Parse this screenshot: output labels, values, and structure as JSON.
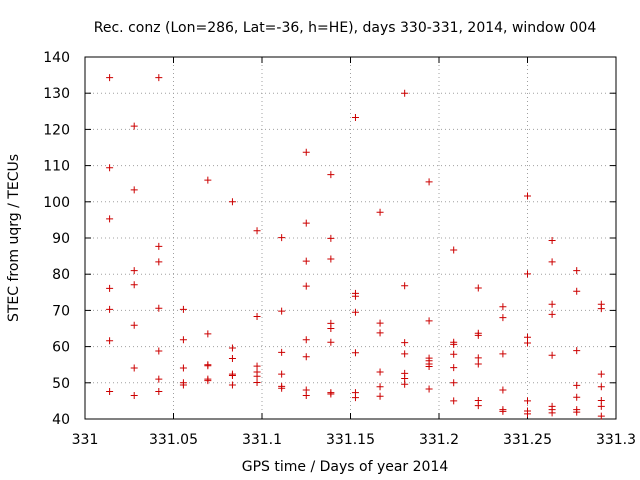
{
  "chart_data": {
    "type": "scatter",
    "title": "Rec. conz (Lon=286, Lat=-36, h=HE), days 330-331, 2014, window 004",
    "xlabel": "GPS time / Days of year 2014",
    "ylabel": "STEC from uqrg / TECUs",
    "xlim": [
      331,
      331.3
    ],
    "ylim": [
      40,
      140
    ],
    "xticks": [
      331,
      331.05,
      331.1,
      331.15,
      331.2,
      331.25,
      331.3
    ],
    "xtick_labels": [
      "331",
      "331.05",
      "331.1",
      "331.15",
      "331.2",
      "331.25",
      "331.3"
    ],
    "yticks": [
      40,
      50,
      60,
      70,
      80,
      90,
      100,
      110,
      120,
      130,
      140
    ],
    "ytick_labels": [
      "40",
      "50",
      "60",
      "70",
      "80",
      "90",
      "100",
      "110",
      "120",
      "130",
      "140"
    ],
    "grid": true,
    "marker": "+",
    "marker_color": "#cc0000",
    "points": [
      [
        331.0139,
        134.3
      ],
      [
        331.0139,
        109.4
      ],
      [
        331.0139,
        95.3
      ],
      [
        331.0139,
        76.1
      ],
      [
        331.0139,
        70.3
      ],
      [
        331.0139,
        61.6
      ],
      [
        331.0139,
        47.6
      ],
      [
        331.0278,
        120.9
      ],
      [
        331.0278,
        103.3
      ],
      [
        331.0278,
        81.0
      ],
      [
        331.0278,
        77.1
      ],
      [
        331.0278,
        65.9
      ],
      [
        331.0278,
        54.1
      ],
      [
        331.0278,
        46.5
      ],
      [
        331.0417,
        134.3
      ],
      [
        331.0417,
        87.7
      ],
      [
        331.0417,
        83.4
      ],
      [
        331.0417,
        70.6
      ],
      [
        331.0417,
        58.8
      ],
      [
        331.0417,
        51.0
      ],
      [
        331.0417,
        47.6
      ],
      [
        331.0556,
        70.3
      ],
      [
        331.0556,
        61.9
      ],
      [
        331.0556,
        54.1
      ],
      [
        331.0556,
        50.0
      ],
      [
        331.0556,
        49.4
      ],
      [
        331.0694,
        106.0
      ],
      [
        331.0694,
        63.5
      ],
      [
        331.0694,
        55.0
      ],
      [
        331.0694,
        54.7
      ],
      [
        331.0694,
        51.0
      ],
      [
        331.0694,
        50.6
      ],
      [
        331.0833,
        100.0
      ],
      [
        331.0833,
        59.6
      ],
      [
        331.0833,
        56.7
      ],
      [
        331.0833,
        52.4
      ],
      [
        331.0833,
        52.0
      ],
      [
        331.0833,
        49.4
      ],
      [
        331.0972,
        92.0
      ],
      [
        331.0972,
        68.3
      ],
      [
        331.0972,
        54.6
      ],
      [
        331.0972,
        53.0
      ],
      [
        331.0972,
        51.8
      ],
      [
        331.0972,
        50.1
      ],
      [
        331.1111,
        90.1
      ],
      [
        331.1111,
        69.8
      ],
      [
        331.1111,
        58.4
      ],
      [
        331.1111,
        52.4
      ],
      [
        331.1111,
        49.0
      ],
      [
        331.1111,
        48.5
      ],
      [
        331.125,
        113.7
      ],
      [
        331.125,
        94.1
      ],
      [
        331.125,
        83.6
      ],
      [
        331.125,
        76.7
      ],
      [
        331.125,
        61.9
      ],
      [
        331.125,
        57.2
      ],
      [
        331.125,
        48.0
      ],
      [
        331.125,
        46.5
      ],
      [
        331.1389,
        107.5
      ],
      [
        331.1389,
        89.9
      ],
      [
        331.1389,
        84.2
      ],
      [
        331.1389,
        66.4
      ],
      [
        331.1389,
        65.0
      ],
      [
        331.1389,
        61.2
      ],
      [
        331.1389,
        47.3
      ],
      [
        331.1389,
        46.9
      ],
      [
        331.1528,
        123.3
      ],
      [
        331.1528,
        74.7
      ],
      [
        331.1528,
        73.9
      ],
      [
        331.1528,
        69.5
      ],
      [
        331.1528,
        58.3
      ],
      [
        331.1528,
        47.3
      ],
      [
        331.1528,
        45.9
      ],
      [
        331.1667,
        97.1
      ],
      [
        331.1667,
        66.5
      ],
      [
        331.1667,
        63.8
      ],
      [
        331.1667,
        53.0
      ],
      [
        331.1667,
        48.9
      ],
      [
        331.1667,
        46.3
      ],
      [
        331.1806,
        130.0
      ],
      [
        331.1806,
        76.8
      ],
      [
        331.1806,
        61.1
      ],
      [
        331.1806,
        58.0
      ],
      [
        331.1806,
        52.6
      ],
      [
        331.1806,
        51.2
      ],
      [
        331.1806,
        49.6
      ],
      [
        331.1944,
        105.5
      ],
      [
        331.1944,
        67.1
      ],
      [
        331.1944,
        56.8
      ],
      [
        331.1944,
        56.1
      ],
      [
        331.1944,
        55.2
      ],
      [
        331.1944,
        54.5
      ],
      [
        331.1944,
        48.3
      ],
      [
        331.2083,
        86.7
      ],
      [
        331.2083,
        61.2
      ],
      [
        331.2083,
        60.6
      ],
      [
        331.2083,
        57.9
      ],
      [
        331.2083,
        54.2
      ],
      [
        331.2083,
        50.0
      ],
      [
        331.2083,
        45.0
      ],
      [
        331.2222,
        76.2
      ],
      [
        331.2222,
        63.7
      ],
      [
        331.2222,
        63.1
      ],
      [
        331.2222,
        56.9
      ],
      [
        331.2222,
        55.2
      ],
      [
        331.2222,
        45.1
      ],
      [
        331.2222,
        43.7
      ],
      [
        331.2361,
        71.0
      ],
      [
        331.2361,
        68.0
      ],
      [
        331.2361,
        58.0
      ],
      [
        331.2361,
        48.0
      ],
      [
        331.2361,
        42.6
      ],
      [
        331.2361,
        42.1
      ],
      [
        331.25,
        101.6
      ],
      [
        331.25,
        80.1
      ],
      [
        331.25,
        62.6
      ],
      [
        331.25,
        61.0
      ],
      [
        331.25,
        45.0
      ],
      [
        331.25,
        42.2
      ],
      [
        331.25,
        41.4
      ],
      [
        331.2639,
        89.3
      ],
      [
        331.2639,
        83.4
      ],
      [
        331.2639,
        71.7
      ],
      [
        331.2639,
        68.9
      ],
      [
        331.2639,
        57.6
      ],
      [
        331.2639,
        43.5
      ],
      [
        331.2639,
        42.6
      ],
      [
        331.2639,
        41.7
      ],
      [
        331.2778,
        81.0
      ],
      [
        331.2778,
        75.3
      ],
      [
        331.2778,
        58.9
      ],
      [
        331.2778,
        49.3
      ],
      [
        331.2778,
        46.0
      ],
      [
        331.2778,
        42.6
      ],
      [
        331.2778,
        41.9
      ],
      [
        331.2917,
        71.7
      ],
      [
        331.2917,
        70.5
      ],
      [
        331.2917,
        52.4
      ],
      [
        331.2917,
        48.9
      ],
      [
        331.2917,
        45.1
      ],
      [
        331.2917,
        43.5
      ],
      [
        331.2917,
        40.8
      ]
    ]
  }
}
